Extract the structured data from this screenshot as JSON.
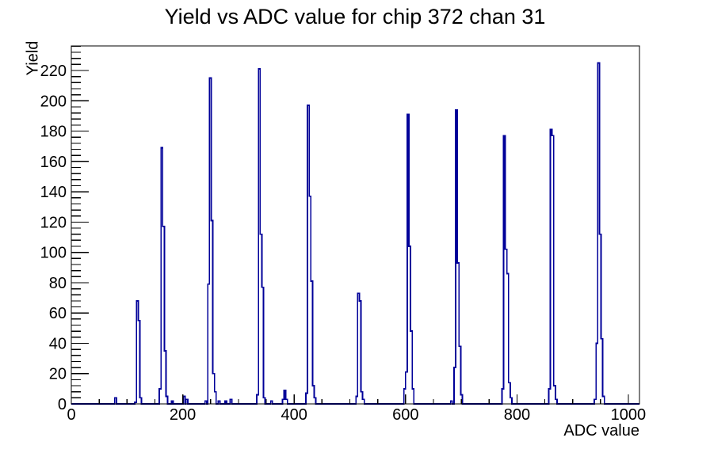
{
  "chart_data": {
    "type": "bar",
    "title": "Yield vs ADC value for chip 372 chan 31",
    "xlabel": "ADC value",
    "ylabel": "Yield",
    "xlim": [
      0,
      1020
    ],
    "ylim": [
      0,
      236.2
    ],
    "x_tick_labels": [
      0,
      200,
      400,
      600,
      800,
      1000
    ],
    "x_minor_tick_step": 50,
    "y_tick_labels": [
      0,
      20,
      40,
      60,
      80,
      100,
      120,
      140,
      160,
      180,
      200,
      220
    ],
    "y_minor_tick_step": 4,
    "grid": "off",
    "legend": "none",
    "bin_width_adc": 3,
    "line_color": "#000099",
    "frame_color": "#000000",
    "background_color": "#ffffff",
    "peaks": [
      {
        "adc": 119,
        "yield": 68
      },
      {
        "adc": 162,
        "yield": 169
      },
      {
        "adc": 249,
        "yield": 215
      },
      {
        "adc": 338,
        "yield": 221
      },
      {
        "adc": 426,
        "yield": 197
      },
      {
        "adc": 515,
        "yield": 73
      },
      {
        "adc": 604,
        "yield": 191
      },
      {
        "adc": 691,
        "yield": 194
      },
      {
        "adc": 777,
        "yield": 177
      },
      {
        "adc": 862,
        "yield": 181
      },
      {
        "adc": 946,
        "yield": 225
      }
    ],
    "bins": [
      [
        78,
        4
      ],
      [
        114,
        1
      ],
      [
        117,
        68
      ],
      [
        120,
        55
      ],
      [
        123,
        4
      ],
      [
        158,
        10
      ],
      [
        161,
        169
      ],
      [
        164,
        117
      ],
      [
        167,
        35
      ],
      [
        170,
        5
      ],
      [
        180,
        2
      ],
      [
        201,
        5
      ],
      [
        206,
        3
      ],
      [
        240,
        2
      ],
      [
        245,
        79
      ],
      [
        248,
        215
      ],
      [
        251,
        121
      ],
      [
        254,
        20
      ],
      [
        257,
        8
      ],
      [
        264,
        2
      ],
      [
        276,
        2
      ],
      [
        285,
        3
      ],
      [
        333,
        6
      ],
      [
        336,
        221
      ],
      [
        339,
        112
      ],
      [
        342,
        77
      ],
      [
        345,
        4
      ],
      [
        358,
        2
      ],
      [
        379,
        3
      ],
      [
        382,
        9
      ],
      [
        385,
        3
      ],
      [
        421,
        7
      ],
      [
        424,
        197
      ],
      [
        427,
        137
      ],
      [
        430,
        81
      ],
      [
        433,
        12
      ],
      [
        436,
        4
      ],
      [
        511,
        5
      ],
      [
        514,
        73
      ],
      [
        517,
        68
      ],
      [
        520,
        8
      ],
      [
        523,
        3
      ],
      [
        597,
        10
      ],
      [
        600,
        21
      ],
      [
        603,
        191
      ],
      [
        606,
        104
      ],
      [
        609,
        48
      ],
      [
        612,
        10
      ],
      [
        681,
        2
      ],
      [
        687,
        24
      ],
      [
        690,
        194
      ],
      [
        693,
        93
      ],
      [
        696,
        38
      ],
      [
        699,
        6
      ],
      [
        773,
        10
      ],
      [
        776,
        177
      ],
      [
        779,
        102
      ],
      [
        782,
        86
      ],
      [
        785,
        14
      ],
      [
        788,
        4
      ],
      [
        857,
        10
      ],
      [
        860,
        181
      ],
      [
        863,
        177
      ],
      [
        866,
        12
      ],
      [
        869,
        3
      ],
      [
        939,
        3
      ],
      [
        942,
        40
      ],
      [
        945,
        225
      ],
      [
        948,
        112
      ],
      [
        951,
        43
      ],
      [
        954,
        5
      ]
    ]
  }
}
